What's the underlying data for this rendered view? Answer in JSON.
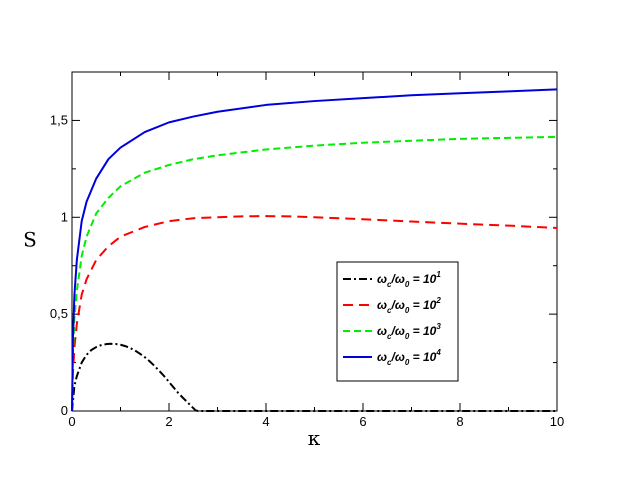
{
  "chart_data": {
    "type": "line",
    "xlabel": "κ",
    "ylabel": "S",
    "xlim": [
      0,
      10
    ],
    "ylim": [
      0,
      1.75
    ],
    "xticks": [
      "0",
      "2",
      "4",
      "6",
      "8",
      "10"
    ],
    "yticks": [
      "0",
      "0,5",
      "1",
      "1,5"
    ],
    "grid": false,
    "legend_position": "center-right",
    "series": [
      {
        "name": "ω_c/ω_0 = 10^1",
        "legend": {
          "base": "ω",
          "sub1": "c",
          "slash": "/",
          "base2": "ω",
          "sub2": "0",
          "eq": " = 10",
          "sup": "1"
        },
        "color": "#000000",
        "dash": "8,3,2,3",
        "x": [
          0,
          0.05,
          0.1,
          0.2,
          0.3,
          0.4,
          0.5,
          0.6,
          0.7,
          0.8,
          0.9,
          1.0,
          1.1,
          1.2,
          1.3,
          1.4,
          1.5,
          1.6,
          1.7,
          1.8,
          1.9,
          2.0,
          2.1,
          2.2,
          2.3,
          2.4,
          2.5,
          2.55,
          2.6,
          3,
          4,
          5,
          6,
          7,
          8,
          9,
          10
        ],
        "y": [
          0,
          0.13,
          0.18,
          0.25,
          0.29,
          0.315,
          0.33,
          0.34,
          0.345,
          0.347,
          0.346,
          0.342,
          0.335,
          0.325,
          0.312,
          0.296,
          0.278,
          0.257,
          0.233,
          0.207,
          0.18,
          0.15,
          0.12,
          0.09,
          0.065,
          0.04,
          0.015,
          0.003,
          0,
          0,
          0,
          0,
          0,
          0,
          0,
          0,
          0
        ]
      },
      {
        "name": "ω_c/ω_0 = 10^2",
        "legend": {
          "base": "ω",
          "sub1": "c",
          "slash": "/",
          "base2": "ω",
          "sub2": "0",
          "eq": " = 10",
          "sup": "2"
        },
        "color": "#ff0000",
        "dash": "10,6",
        "x": [
          0,
          0.02,
          0.05,
          0.1,
          0.2,
          0.3,
          0.5,
          0.75,
          1.0,
          1.5,
          2.0,
          2.5,
          3.0,
          3.5,
          4.0,
          4.5,
          5.0,
          5.5,
          6.0,
          7.0,
          8.0,
          9.0,
          10.0
        ],
        "y": [
          0,
          0.2,
          0.33,
          0.45,
          0.6,
          0.68,
          0.78,
          0.85,
          0.9,
          0.95,
          0.98,
          0.995,
          1.0,
          1.005,
          1.006,
          1.005,
          1.0,
          0.995,
          0.99,
          0.978,
          0.967,
          0.957,
          0.945
        ]
      },
      {
        "name": "ω_c/ω_0 = 10^3",
        "legend": {
          "base": "ω",
          "sub1": "c",
          "slash": "/",
          "base2": "ω",
          "sub2": "0",
          "eq": " = 10",
          "sup": "3"
        },
        "color": "#00ee00",
        "dash": "7,4",
        "x": [
          0,
          0.02,
          0.05,
          0.1,
          0.2,
          0.3,
          0.5,
          0.75,
          1.0,
          1.5,
          2.0,
          2.5,
          3.0,
          4.0,
          5.0,
          6.0,
          7.0,
          8.0,
          9.0,
          10.0
        ],
        "y": [
          0,
          0.3,
          0.48,
          0.62,
          0.8,
          0.9,
          1.02,
          1.1,
          1.16,
          1.23,
          1.27,
          1.3,
          1.32,
          1.35,
          1.37,
          1.385,
          1.395,
          1.405,
          1.41,
          1.415
        ]
      },
      {
        "name": "ω_c/ω_0 = 10^4",
        "legend": {
          "base": "ω",
          "sub1": "c",
          "slash": "/",
          "base2": "ω",
          "sub2": "0",
          "eq": " = 10",
          "sup": "4"
        },
        "color": "#0000dd",
        "dash": "",
        "x": [
          0,
          0.02,
          0.05,
          0.1,
          0.2,
          0.3,
          0.5,
          0.75,
          1.0,
          1.5,
          2.0,
          2.5,
          3.0,
          4.0,
          5.0,
          6.0,
          7.0,
          8.0,
          9.0,
          10.0
        ],
        "y": [
          0,
          0.38,
          0.6,
          0.78,
          0.98,
          1.08,
          1.2,
          1.3,
          1.36,
          1.44,
          1.49,
          1.52,
          1.545,
          1.58,
          1.6,
          1.615,
          1.63,
          1.64,
          1.65,
          1.66
        ]
      }
    ]
  }
}
